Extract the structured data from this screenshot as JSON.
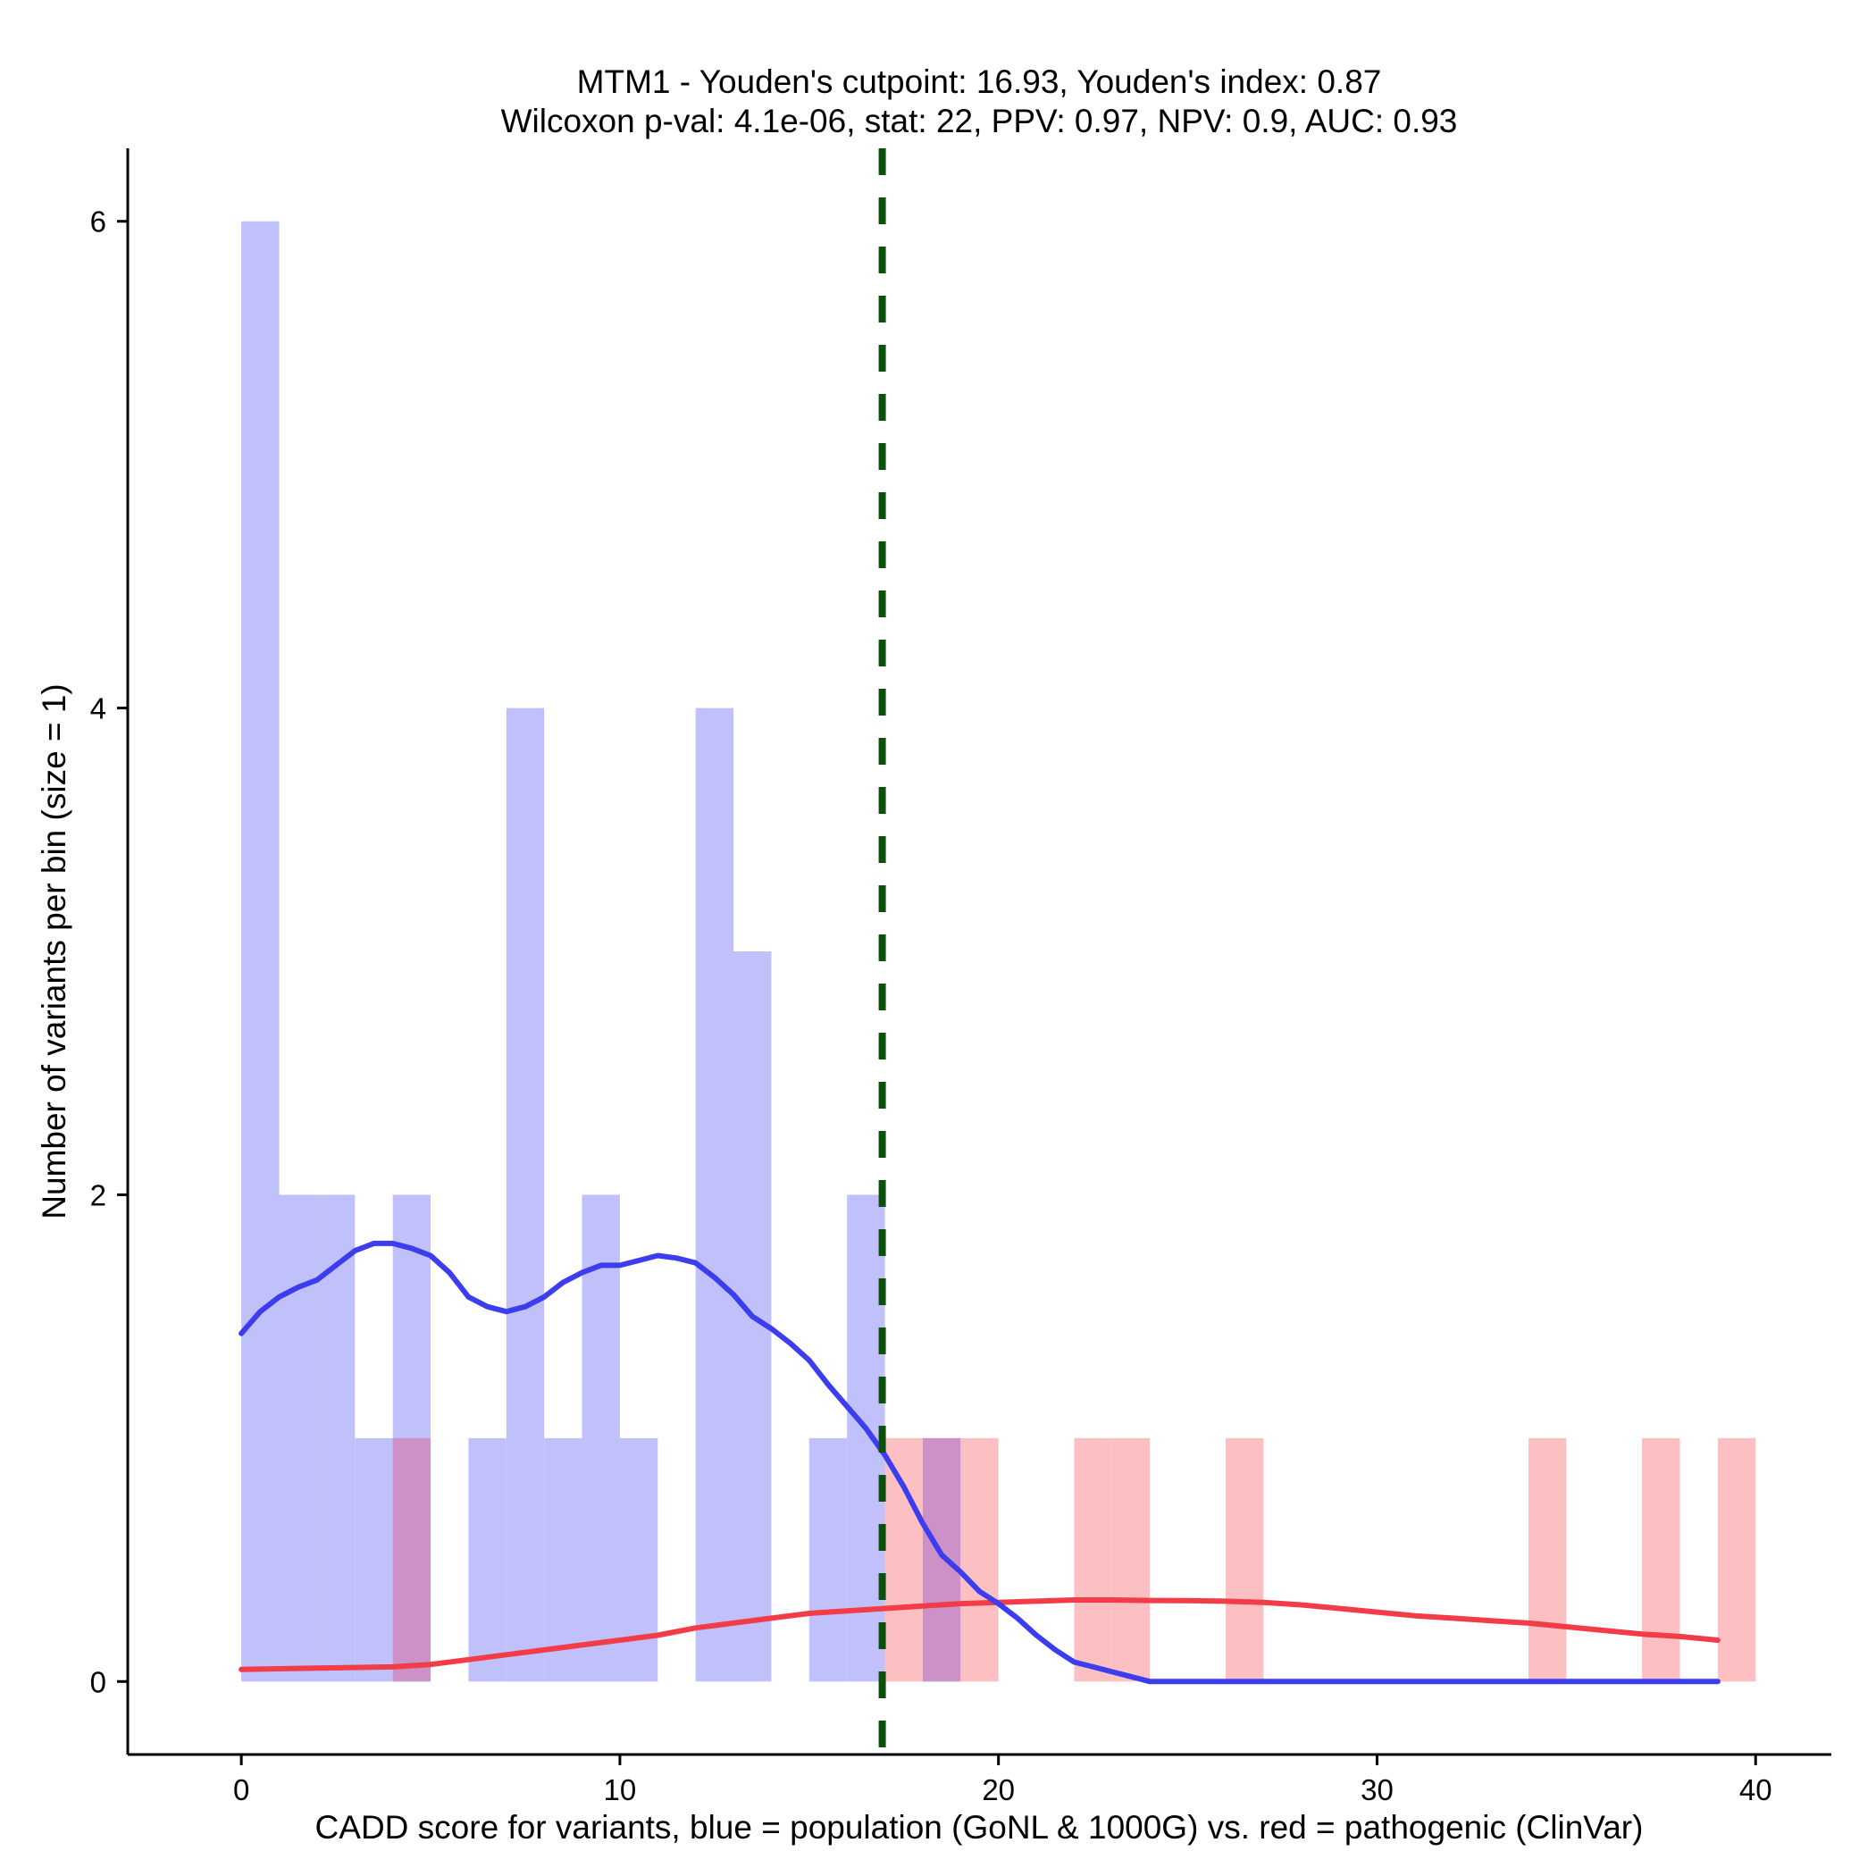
{
  "chart_data": {
    "type": "histogram",
    "title": "MTM1 - Youden's cutpoint: 16.93, Youden's index: 0.87",
    "subtitle": "Wilcoxon p-val: 4.1e-06, stat: 22, PPV: 0.97, NPV: 0.9, AUC: 0.93",
    "xlabel": "CADD score for variants, blue = population (GoNL & 1000G) vs. red = pathogenic (ClinVar)",
    "ylabel": "Number of variants per bin (size = 1)",
    "xlim": [
      -3,
      42
    ],
    "ylim": [
      -0.3,
      6.3
    ],
    "x_ticks": [
      0,
      10,
      20,
      30,
      40
    ],
    "y_ticks": [
      0,
      2,
      4,
      6
    ],
    "bin_size": 1,
    "cutpoint": 16.93,
    "colors": {
      "population_bar": "#c0c0fb",
      "pathogenic_bar": "#fcbfc2",
      "population_line": "#3d3df0",
      "pathogenic_line": "#f23c48",
      "cutpoint_line": "#0d4f0d",
      "overlap_bar": "#cc92c7"
    },
    "series": [
      {
        "name": "population (GoNL & 1000G)",
        "bins": [
          {
            "x": 0,
            "count": 6
          },
          {
            "x": 1,
            "count": 2
          },
          {
            "x": 2,
            "count": 2
          },
          {
            "x": 3,
            "count": 1
          },
          {
            "x": 4,
            "count": 2
          },
          {
            "x": 6,
            "count": 1
          },
          {
            "x": 7,
            "count": 4
          },
          {
            "x": 8,
            "count": 1
          },
          {
            "x": 9,
            "count": 2
          },
          {
            "x": 10,
            "count": 1
          },
          {
            "x": 12,
            "count": 4
          },
          {
            "x": 13,
            "count": 3
          },
          {
            "x": 15,
            "count": 1
          },
          {
            "x": 16,
            "count": 2
          },
          {
            "x": 18,
            "count": 1
          }
        ],
        "density": [
          [
            0,
            1.43
          ],
          [
            0.5,
            1.52
          ],
          [
            1,
            1.58
          ],
          [
            1.5,
            1.62
          ],
          [
            2,
            1.65
          ],
          [
            2.5,
            1.71
          ],
          [
            3,
            1.77
          ],
          [
            3.5,
            1.8
          ],
          [
            4,
            1.8
          ],
          [
            4.5,
            1.78
          ],
          [
            5,
            1.75
          ],
          [
            5.5,
            1.68
          ],
          [
            6,
            1.58
          ],
          [
            6.5,
            1.54
          ],
          [
            7,
            1.52
          ],
          [
            7.5,
            1.54
          ],
          [
            8,
            1.58
          ],
          [
            8.5,
            1.64
          ],
          [
            9,
            1.68
          ],
          [
            9.5,
            1.71
          ],
          [
            10,
            1.71
          ],
          [
            10.5,
            1.73
          ],
          [
            11,
            1.75
          ],
          [
            11.5,
            1.74
          ],
          [
            12,
            1.72
          ],
          [
            12.5,
            1.66
          ],
          [
            13,
            1.59
          ],
          [
            13.5,
            1.5
          ],
          [
            14,
            1.45
          ],
          [
            14.5,
            1.39
          ],
          [
            15,
            1.32
          ],
          [
            15.5,
            1.22
          ],
          [
            16,
            1.13
          ],
          [
            16.5,
            1.04
          ],
          [
            17,
            0.93
          ],
          [
            17.5,
            0.8
          ],
          [
            18,
            0.65
          ],
          [
            18.5,
            0.52
          ],
          [
            19,
            0.45
          ],
          [
            19.5,
            0.37
          ],
          [
            20,
            0.32
          ],
          [
            20.5,
            0.26
          ],
          [
            21,
            0.19
          ],
          [
            21.5,
            0.13
          ],
          [
            22,
            0.08
          ],
          [
            22.5,
            0.06
          ],
          [
            23,
            0.04
          ],
          [
            23.5,
            0.02
          ],
          [
            24,
            0.0
          ],
          [
            30,
            0.0
          ],
          [
            39,
            0.0
          ]
        ]
      },
      {
        "name": "pathogenic (ClinVar)",
        "bins": [
          {
            "x": 4,
            "count": 1
          },
          {
            "x": 17,
            "count": 1
          },
          {
            "x": 18,
            "count": 1
          },
          {
            "x": 19,
            "count": 1
          },
          {
            "x": 22,
            "count": 1
          },
          {
            "x": 23,
            "count": 1
          },
          {
            "x": 26,
            "count": 1
          },
          {
            "x": 34,
            "count": 1
          },
          {
            "x": 37,
            "count": 1
          },
          {
            "x": 39,
            "count": 1
          }
        ],
        "density": [
          [
            0,
            0.05
          ],
          [
            2,
            0.055
          ],
          [
            4,
            0.06
          ],
          [
            5,
            0.07
          ],
          [
            6,
            0.09
          ],
          [
            7,
            0.11
          ],
          [
            8,
            0.13
          ],
          [
            9,
            0.15
          ],
          [
            10,
            0.17
          ],
          [
            11,
            0.19
          ],
          [
            12,
            0.22
          ],
          [
            13,
            0.24
          ],
          [
            14,
            0.26
          ],
          [
            15,
            0.28
          ],
          [
            16,
            0.29
          ],
          [
            17,
            0.3
          ],
          [
            18,
            0.31
          ],
          [
            19,
            0.32
          ],
          [
            20,
            0.325
          ],
          [
            21,
            0.33
          ],
          [
            22,
            0.335
          ],
          [
            23,
            0.335
          ],
          [
            24,
            0.333
          ],
          [
            25,
            0.332
          ],
          [
            26,
            0.33
          ],
          [
            27,
            0.325
          ],
          [
            28,
            0.315
          ],
          [
            29,
            0.3
          ],
          [
            30,
            0.285
          ],
          [
            31,
            0.27
          ],
          [
            32,
            0.26
          ],
          [
            33,
            0.25
          ],
          [
            34,
            0.24
          ],
          [
            35,
            0.225
          ],
          [
            36,
            0.21
          ],
          [
            37,
            0.195
          ],
          [
            38,
            0.185
          ],
          [
            39,
            0.17
          ]
        ]
      }
    ]
  }
}
